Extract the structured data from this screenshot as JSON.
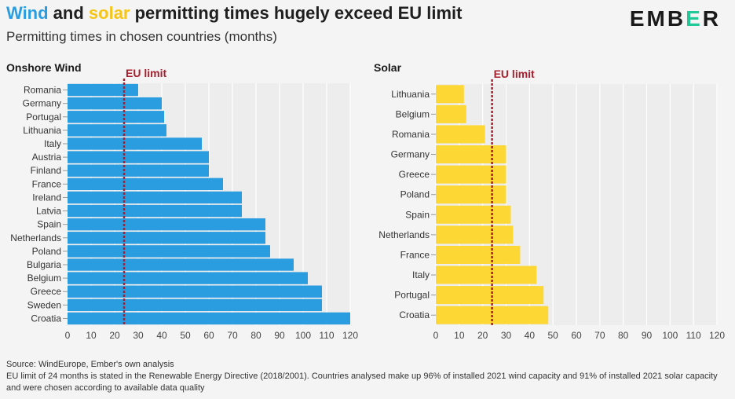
{
  "header": {
    "title_word1": "Wind",
    "title_and": " and ",
    "title_word2": "solar",
    "title_rest": " permitting times hugely exceed EU limit",
    "subtitle": "Permitting times in chosen countries (months)",
    "brand_part1": "EMB",
    "brand_part2": "E",
    "brand_part3": "R"
  },
  "colors": {
    "wind": "#2a9de0",
    "solar": "#fdd835",
    "eu_limit": "#a8202e",
    "wind_word": "#2a9de0",
    "solar_word": "#f5c518"
  },
  "chart_data": [
    {
      "type": "bar",
      "orientation": "horizontal",
      "title": "Onshore Wind",
      "reference_line": {
        "label": "EU limit",
        "value": 24
      },
      "categories": [
        "Romania",
        "Germany",
        "Portugal",
        "Lithuania",
        "Italy",
        "Austria",
        "Finland",
        "France",
        "Ireland",
        "Latvia",
        "Spain",
        "Netherlands",
        "Poland",
        "Bulgaria",
        "Belgium",
        "Greece",
        "Sweden",
        "Croatia"
      ],
      "values": [
        30,
        40,
        41,
        42,
        57,
        60,
        60,
        66,
        74,
        74,
        84,
        84,
        86,
        96,
        102,
        108,
        108,
        120
      ],
      "xlim": [
        0,
        120
      ],
      "xticks": [
        0,
        10,
        20,
        30,
        40,
        50,
        60,
        70,
        80,
        90,
        100,
        110,
        120
      ],
      "grid": true
    },
    {
      "type": "bar",
      "orientation": "horizontal",
      "title": "Solar",
      "reference_line": {
        "label": "EU limit",
        "value": 24
      },
      "categories": [
        "Lithuania",
        "Belgium",
        "Romania",
        "Germany",
        "Greece",
        "Poland",
        "Spain",
        "Netherlands",
        "France",
        "Italy",
        "Portugal",
        "Croatia"
      ],
      "values": [
        12,
        13,
        21,
        30,
        30,
        30,
        32,
        33,
        36,
        43,
        46,
        48
      ],
      "xlim": [
        0,
        120
      ],
      "xticks": [
        0,
        10,
        20,
        30,
        40,
        50,
        60,
        70,
        80,
        90,
        100,
        110,
        120
      ],
      "grid": true
    }
  ],
  "footer": {
    "source": "Source: WindEurope, Ember's own analysis",
    "note": "EU limit of 24 months is stated in the Renewable Energy Directive (2018/2001). Countries analysed make up 96% of installed 2021 wind capacity and 91% of installed 2021 solar capacity and were chosen according to available data quality"
  }
}
